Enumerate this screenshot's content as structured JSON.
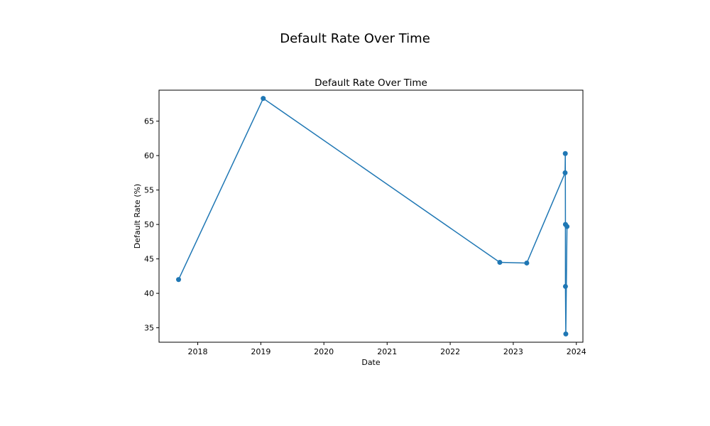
{
  "figure": {
    "title": "Default Rate Over Time"
  },
  "chart_data": {
    "type": "line",
    "title": "Default Rate Over Time",
    "xlabel": "Date",
    "ylabel": "Default Rate (%)",
    "x_ticks": [
      "2018",
      "2019",
      "2020",
      "2021",
      "2022",
      "2023",
      "2024"
    ],
    "y_ticks": [
      "35",
      "40",
      "45",
      "50",
      "55",
      "60",
      "65"
    ],
    "xlim": [
      "2017-05-22",
      "2024-02-08"
    ],
    "ylim": [
      32.9,
      69.5
    ],
    "grid": false,
    "series": [
      {
        "marker": "circle",
        "color": "#1f77b4",
        "points": [
          {
            "x": "2017-09-12",
            "y": 42.0
          },
          {
            "x": "2019-01-15",
            "y": 68.3
          },
          {
            "x": "2022-10-15",
            "y": 44.5
          },
          {
            "x": "2023-03-20",
            "y": 44.4
          },
          {
            "x": "2023-10-28",
            "y": 57.5
          },
          {
            "x": "2023-10-29",
            "y": 60.3
          },
          {
            "x": "2023-10-30",
            "y": 50.0
          },
          {
            "x": "2023-10-30",
            "y": 41.0
          },
          {
            "x": "2023-11-01",
            "y": 34.1
          },
          {
            "x": "2023-11-08",
            "y": 49.7
          }
        ]
      }
    ]
  }
}
